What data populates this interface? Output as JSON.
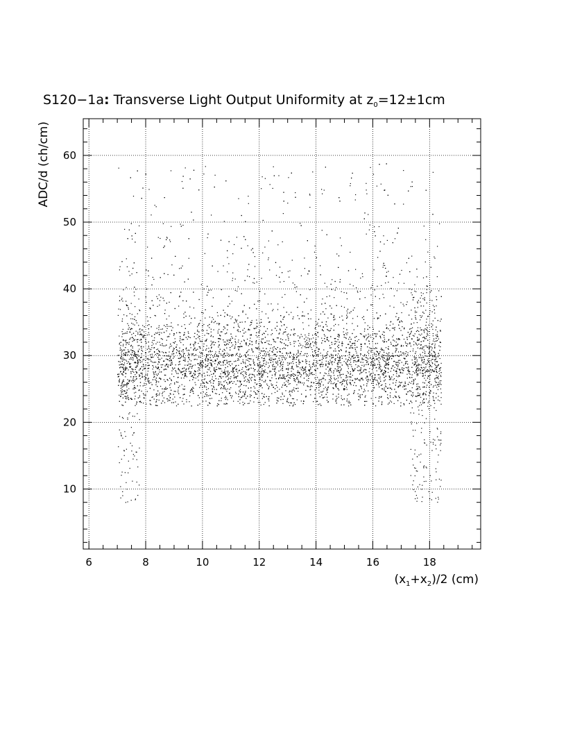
{
  "chart_data": {
    "type": "scatter",
    "title": "S120−1a: Transverse Light Output Uniformity at z₀=12±1cm",
    "title_parts": {
      "main": "S120−1a",
      "colon": ":",
      "rest": " Transverse Light Output Uniformity at z",
      "sub": "0",
      "tail": "=12±1cm"
    },
    "xlabel": "(x₁+x₂)/2 (cm)",
    "xlabel_parts": {
      "a": "(x",
      "s1": "1",
      "b": "+x",
      "s2": "2",
      "c": ")/2 (cm)"
    },
    "ylabel": "ADC/d (ch/cm)",
    "xlim": [
      5.8,
      19.8
    ],
    "ylim": [
      1,
      65.5
    ],
    "x_ticks": [
      "6",
      "8",
      "10",
      "12",
      "14",
      "16",
      "18"
    ],
    "y_ticks": [
      "10",
      "20",
      "30",
      "40",
      "50",
      "60"
    ],
    "grid": true,
    "legend": "none",
    "point_color": "#000000",
    "distribution": {
      "x_range": [
        7.0,
        18.4
      ],
      "core_y_center": 28.5,
      "core_y_spread": 3.2,
      "core_y_min": 22.5,
      "sparse_y_max": 59,
      "description_points": 6000
    }
  }
}
